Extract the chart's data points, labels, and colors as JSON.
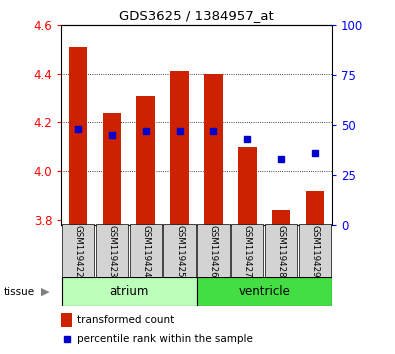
{
  "title": "GDS3625 / 1384957_at",
  "samples": [
    "GSM119422",
    "GSM119423",
    "GSM119424",
    "GSM119425",
    "GSM119426",
    "GSM119427",
    "GSM119428",
    "GSM119429"
  ],
  "bar_values": [
    4.51,
    4.24,
    4.31,
    4.41,
    4.4,
    4.1,
    3.84,
    3.92
  ],
  "bar_base": 3.78,
  "percentile_values": [
    48,
    45,
    47,
    47,
    47,
    43,
    33,
    36
  ],
  "ylim": [
    3.78,
    4.6
  ],
  "yticks_left": [
    3.8,
    4.0,
    4.2,
    4.4,
    4.6
  ],
  "yticks_right": [
    0,
    25,
    50,
    75,
    100
  ],
  "bar_color": "#cc2200",
  "blue_color": "#0000cc",
  "atrium_color": "#bbffbb",
  "ventricle_color": "#44dd44",
  "label_bg_color": "#d3d3d3",
  "legend_red": "transformed count",
  "legend_blue": "percentile rank within the sample",
  "tissue_label": "tissue",
  "bar_width": 0.55,
  "grid_ticks": [
    4.0,
    4.2,
    4.4
  ],
  "atrium_indices": [
    0,
    1,
    2,
    3
  ],
  "ventricle_indices": [
    4,
    5,
    6,
    7
  ]
}
